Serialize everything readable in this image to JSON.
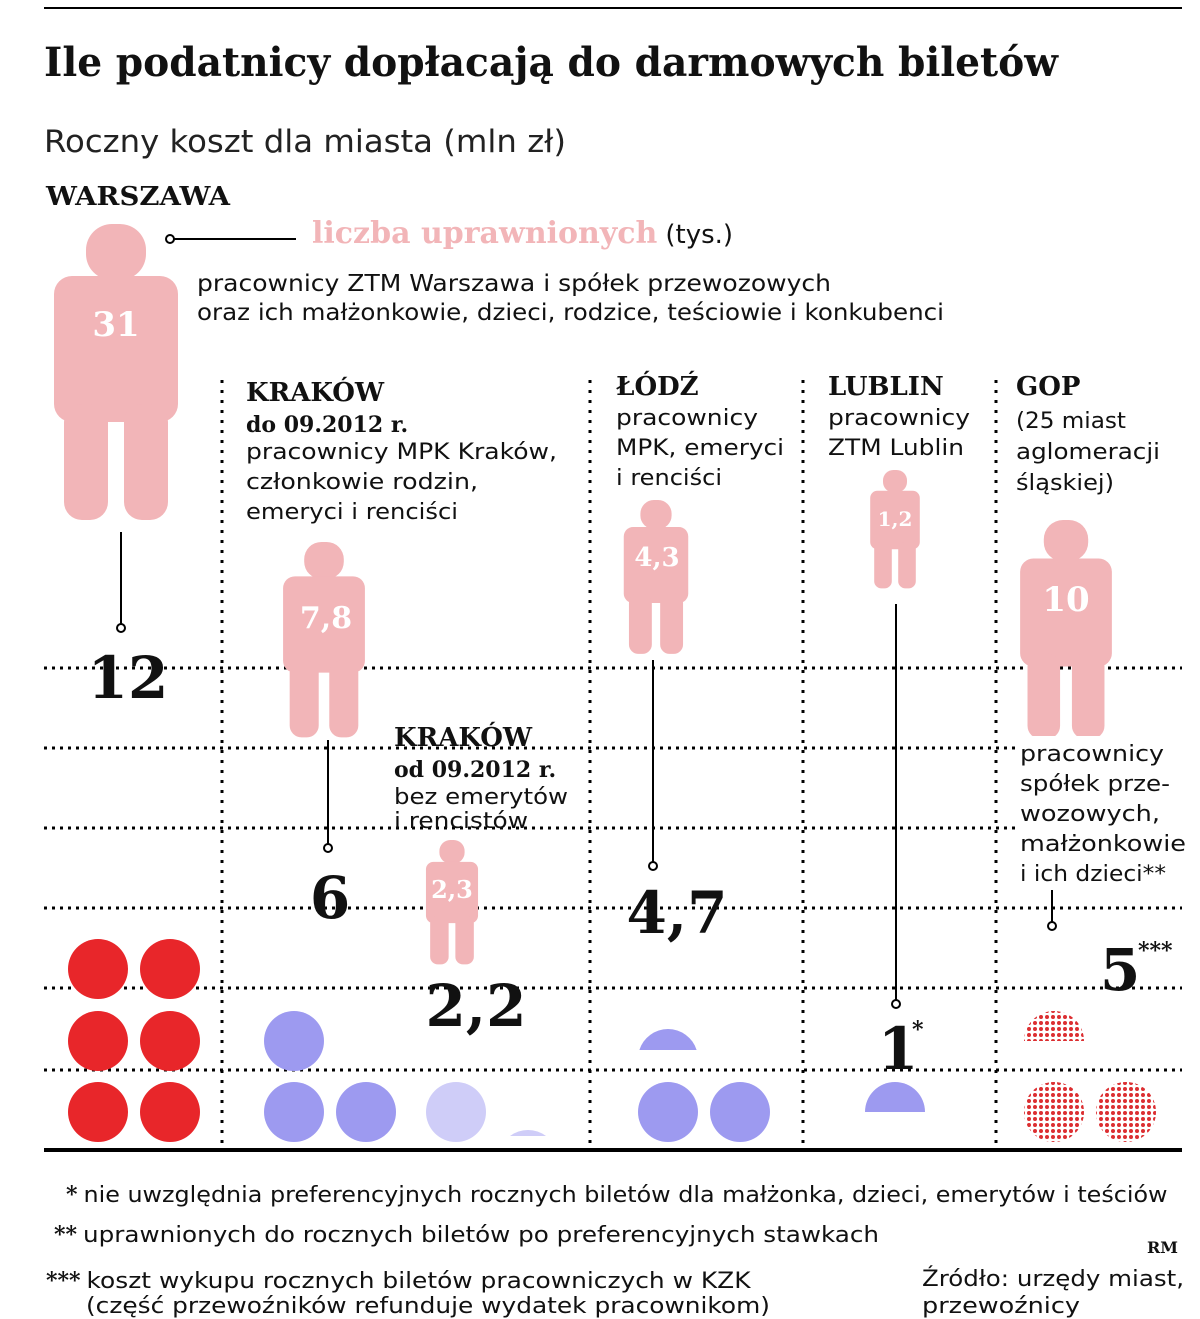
{
  "header": {
    "title": "Ile podatnicy dopłacają do darmowych biletów",
    "subtitle": "Roczny koszt dla miasta (mln zł)"
  },
  "legend": {
    "label": "liczba uprawnionych",
    "unit": "(tys.)"
  },
  "colors": {
    "figure": "#f2b5b8",
    "warszawa_dot": "#e8262a",
    "purple_dot": "#9d9af0",
    "light_dot": "#cfcdf8",
    "gop_dot": "#dc2e31",
    "rule": "#000000"
  },
  "chart_data": {
    "type": "pictogram",
    "title": "Ile podatnicy dopłacają do darmowych biletów",
    "subtitle": "Roczny koszt dla miasta (mln zł)",
    "icon_unit_mln_zl": 2,
    "groups": [
      {
        "city": "WARSZAWA",
        "description": "pracownicy ZTM Warszawa i spółek przewozowych oraz ich małżonkowie, dzieci, rodzice, teściowie i konkubenci",
        "eligible_thousand": 31,
        "eligible_label": "31",
        "cost_mln": 12,
        "cost_label": "12",
        "marker": ""
      },
      {
        "city": "KRAKÓW",
        "period": "do 09.2012 r.",
        "description": "pracownicy MPK Kraków, członkowie rodzin, emeryci i renciści",
        "eligible_thousand": 7.8,
        "eligible_label": "7,8",
        "cost_mln": 6,
        "cost_label": "6",
        "marker": ""
      },
      {
        "city": "KRAKÓW",
        "period": "od 09.2012 r.",
        "description": "bez emerytów i rencistów",
        "eligible_thousand": 2.3,
        "eligible_label": "2,3",
        "cost_mln": 2.2,
        "cost_label": "2,2",
        "marker": ""
      },
      {
        "city": "ŁÓDŹ",
        "description": "pracownicy MPK, emeryci i renciści",
        "eligible_thousand": 4.3,
        "eligible_label": "4,3",
        "cost_mln": 4.7,
        "cost_label": "4,7",
        "marker": ""
      },
      {
        "city": "LUBLIN",
        "description": "pracownicy ZTM Lublin",
        "eligible_thousand": 1.2,
        "eligible_label": "1,2",
        "cost_mln": 1,
        "cost_label": "1",
        "marker": "*"
      },
      {
        "city": "GOP",
        "description": "(25 miast aglomeracji śląskiej)",
        "note": "pracownicy spółek przewozowych, małżonkowie i ich dzieci**",
        "eligible_thousand": 10,
        "eligible_label": "10",
        "cost_mln": 5,
        "cost_label": "5",
        "marker": "***"
      }
    ]
  },
  "text": {
    "warszawa": {
      "city": "WARSZAWA",
      "desc_1": "pracownicy ZTM Warszawa i spółek przewozowych",
      "desc_2": "oraz ich małżonkowie, dzieci, rodzice, teściowie i konkubenci"
    },
    "krakow1": {
      "city": "KRAKÓW",
      "period": "do 09.2012 r.",
      "desc_1": "pracownicy MPK Kraków,",
      "desc_2": "członkowie rodzin,",
      "desc_3": "emeryci i renciści"
    },
    "krakow2": {
      "city": "KRAKÓW",
      "period": "od 09.2012 r.",
      "desc_1": "bez emerytów",
      "desc_2": "i rencistów"
    },
    "lodz": {
      "city": "ŁÓDŹ",
      "desc_1": "pracownicy",
      "desc_2": "MPK, emeryci",
      "desc_3": "i renciści"
    },
    "lublin": {
      "city": "LUBLIN",
      "desc_1": "pracownicy",
      "desc_2": "ZTM Lublin"
    },
    "gop": {
      "city": "GOP",
      "desc_1": "(25 miast",
      "desc_2": "aglomeracji",
      "desc_3": "śląskiej)",
      "note_1": "pracownicy",
      "note_2": "spółek prze-",
      "note_3": "wozowych,",
      "note_4": "małżonkowie",
      "note_5": "i ich dzieci**"
    }
  },
  "footnotes": {
    "f1_mark": "*",
    "f1": "nie uwzględnia preferencyjnych rocznych biletów dla małżonka, dzieci, emerytów i teściów",
    "f2_mark": "**",
    "f2": "uprawnionych do rocznych biletów po preferencyjnych stawkach",
    "f3_mark": "***",
    "f3_1": "koszt wykupu rocznych biletów pracowniczych w KZK",
    "f3_2": "(część przewoźników refunduje wydatek pracownikom)",
    "author": "RM",
    "source_1": "Źródło: urzędy miast,",
    "source_2": "przewoźnicy"
  }
}
